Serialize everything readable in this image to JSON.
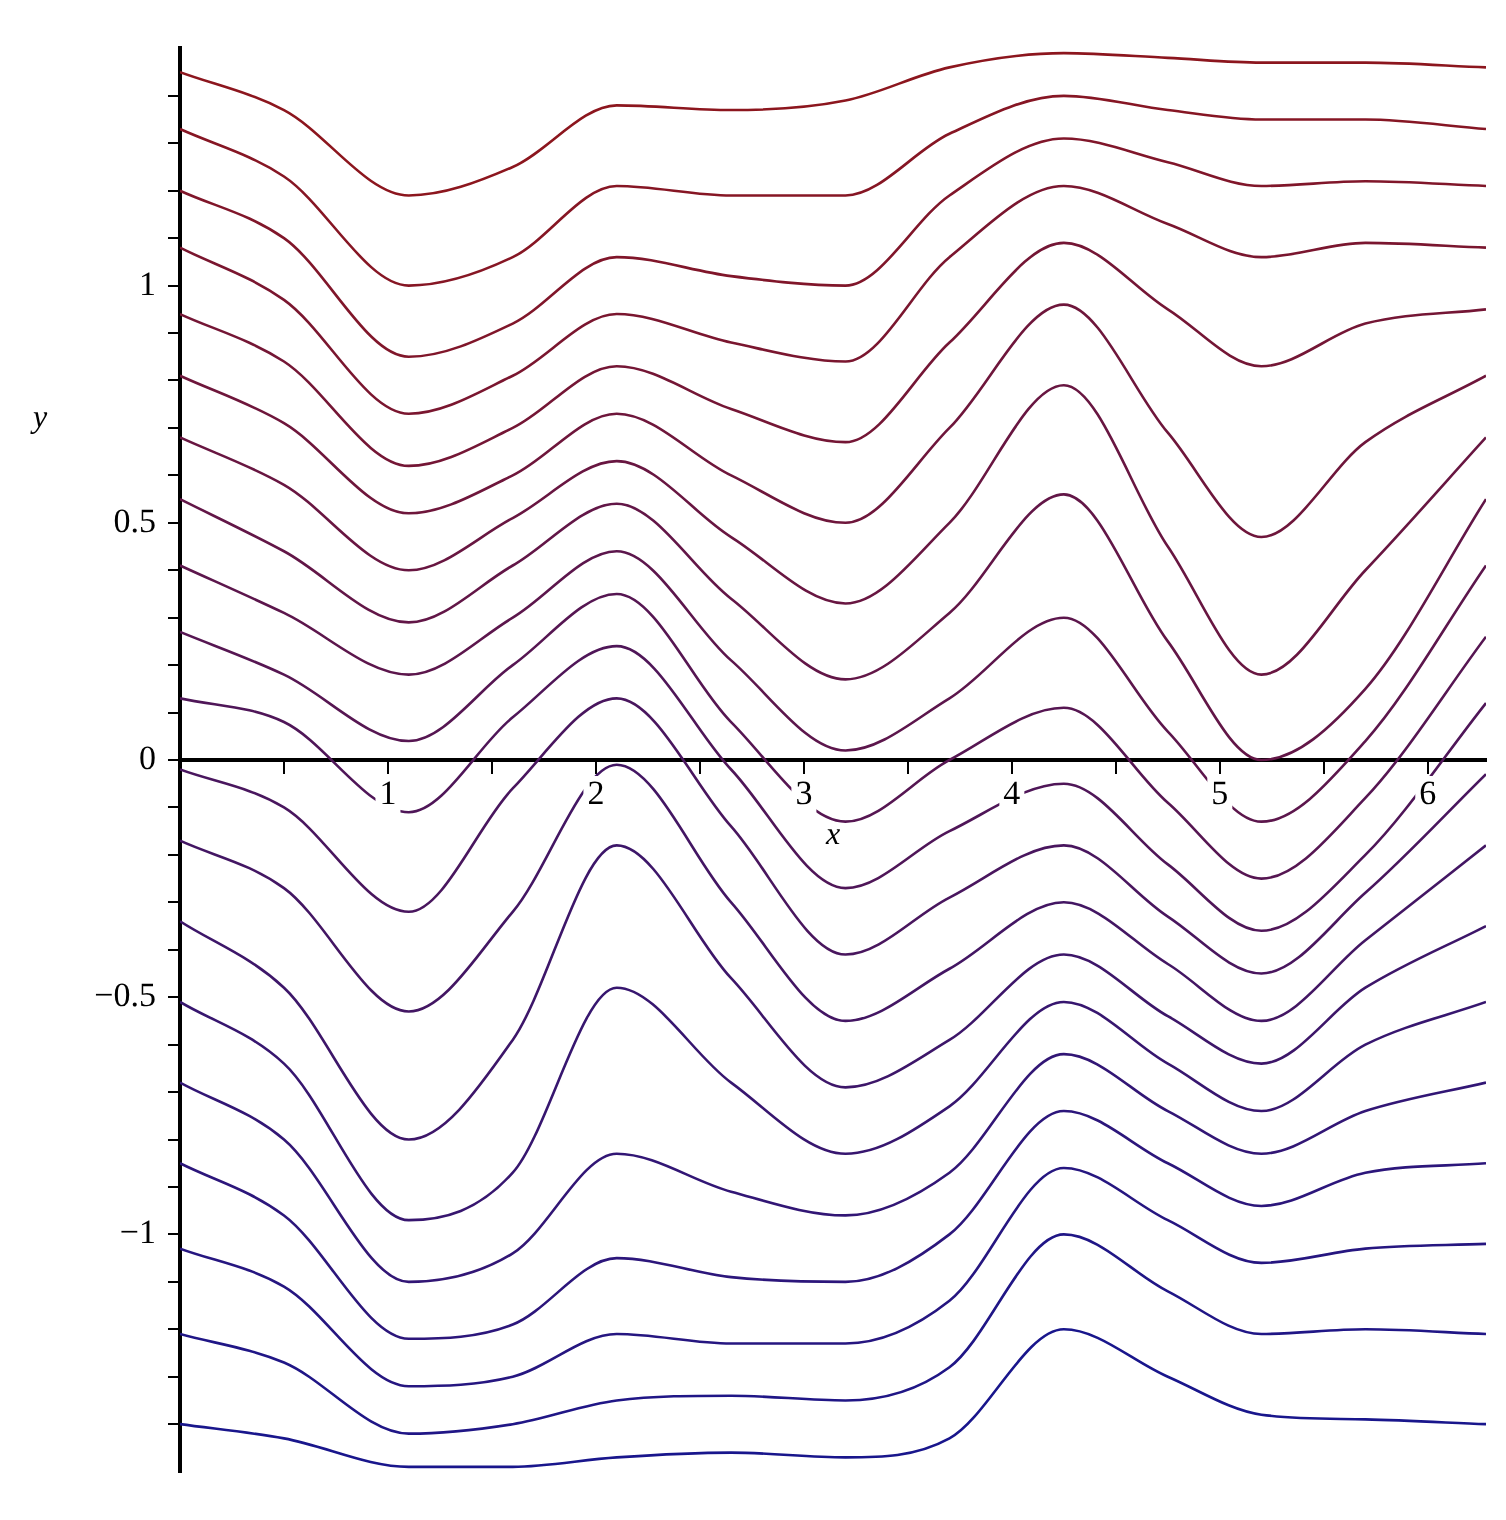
{
  "chart_data": {
    "type": "line",
    "xlabel": "x",
    "ylabel": "y",
    "x": [
      0,
      0.5,
      1.1,
      1.6,
      2.1,
      2.65,
      3.2,
      3.7,
      4.25,
      4.75,
      5.2,
      5.7,
      6.28
    ],
    "xlim": [
      0,
      6.28
    ],
    "ylim": [
      -1.5,
      1.5
    ],
    "xticks": [
      {
        "value": 0.5,
        "label": null
      },
      1,
      {
        "value": 1.5,
        "label": null
      },
      2,
      {
        "value": 2.5,
        "label": null
      },
      3,
      {
        "value": 3.5,
        "label": null
      },
      4,
      {
        "value": 4.5,
        "label": null
      },
      5,
      {
        "value": 5.5,
        "label": null
      },
      6
    ],
    "yticks": [
      {
        "value": -1.4,
        "label": null
      },
      {
        "value": -1.3,
        "label": null
      },
      {
        "value": -1.2,
        "label": null
      },
      {
        "value": -1.1,
        "label": null
      },
      {
        "value": -1,
        "label": "−1"
      },
      {
        "value": -0.9,
        "label": null
      },
      {
        "value": -0.8,
        "label": null
      },
      {
        "value": -0.7,
        "label": null
      },
      {
        "value": -0.6,
        "label": null
      },
      {
        "value": -0.5,
        "label": "−0.5"
      },
      {
        "value": -0.4,
        "label": null
      },
      {
        "value": -0.3,
        "label": null
      },
      {
        "value": -0.2,
        "label": null
      },
      {
        "value": -0.1,
        "label": null
      },
      0,
      {
        "value": 0.1,
        "label": null
      },
      {
        "value": 0.2,
        "label": null
      },
      {
        "value": 0.3,
        "label": null
      },
      {
        "value": 0.4,
        "label": null
      },
      0.5,
      {
        "value": 0.6,
        "label": null
      },
      {
        "value": 0.7,
        "label": null
      },
      {
        "value": 0.8,
        "label": null
      },
      {
        "value": 0.9,
        "label": null
      },
      1,
      {
        "value": 1.1,
        "label": null
      },
      {
        "value": 1.2,
        "label": null
      },
      {
        "value": 1.3,
        "label": null
      },
      {
        "value": 1.4,
        "label": null
      }
    ],
    "grid": false,
    "legend": false,
    "marker": "none",
    "line_style": "solid",
    "series": [
      {
        "color": "#8c161e",
        "values": [
          1.45,
          1.37,
          1.19,
          1.25,
          1.38,
          1.37,
          1.39,
          1.46,
          1.49,
          1.48,
          1.47,
          1.47,
          1.46
        ]
      },
      {
        "color": "#861624",
        "values": [
          1.33,
          1.23,
          1.0,
          1.06,
          1.21,
          1.19,
          1.19,
          1.32,
          1.4,
          1.37,
          1.35,
          1.35,
          1.33
        ]
      },
      {
        "color": "#80162a",
        "values": [
          1.2,
          1.1,
          0.85,
          0.92,
          1.06,
          1.02,
          1.0,
          1.19,
          1.31,
          1.26,
          1.21,
          1.22,
          1.21
        ]
      },
      {
        "color": "#7a162f",
        "values": [
          1.08,
          0.97,
          0.73,
          0.81,
          0.94,
          0.88,
          0.84,
          1.06,
          1.21,
          1.13,
          1.06,
          1.09,
          1.08
        ]
      },
      {
        "color": "#741635",
        "values": [
          0.94,
          0.84,
          0.62,
          0.7,
          0.83,
          0.74,
          0.67,
          0.88,
          1.09,
          0.95,
          0.83,
          0.92,
          0.95
        ]
      },
      {
        "color": "#6e163b",
        "values": [
          0.81,
          0.71,
          0.52,
          0.6,
          0.73,
          0.6,
          0.5,
          0.7,
          0.96,
          0.69,
          0.47,
          0.67,
          0.81
        ]
      },
      {
        "color": "#681641",
        "values": [
          0.68,
          0.58,
          0.4,
          0.51,
          0.63,
          0.47,
          0.33,
          0.5,
          0.79,
          0.45,
          0.18,
          0.4,
          0.68
        ]
      },
      {
        "color": "#621647",
        "values": [
          0.55,
          0.44,
          0.29,
          0.41,
          0.54,
          0.34,
          0.17,
          0.31,
          0.56,
          0.25,
          0.0,
          0.15,
          0.55
        ]
      },
      {
        "color": "#5c164c",
        "values": [
          0.41,
          0.31,
          0.18,
          0.3,
          0.44,
          0.21,
          0.02,
          0.13,
          0.3,
          0.06,
          -0.13,
          0.04,
          0.41
        ]
      },
      {
        "color": "#561652",
        "values": [
          0.27,
          0.18,
          0.04,
          0.2,
          0.35,
          0.08,
          -0.13,
          0.0,
          0.11,
          -0.09,
          -0.25,
          -0.08,
          0.26
        ]
      },
      {
        "color": "#4f1658",
        "values": [
          0.13,
          0.08,
          -0.11,
          0.09,
          0.24,
          -0.02,
          -0.27,
          -0.15,
          -0.05,
          -0.22,
          -0.36,
          -0.2,
          0.12
        ]
      },
      {
        "color": "#49165e",
        "values": [
          -0.02,
          -0.1,
          -0.32,
          -0.06,
          0.13,
          -0.14,
          -0.41,
          -0.29,
          -0.18,
          -0.33,
          -0.45,
          -0.28,
          -0.03
        ]
      },
      {
        "color": "#431663",
        "values": [
          -0.17,
          -0.27,
          -0.53,
          -0.32,
          -0.01,
          -0.3,
          -0.55,
          -0.44,
          -0.3,
          -0.43,
          -0.55,
          -0.38,
          -0.18
        ]
      },
      {
        "color": "#3d1669",
        "values": [
          -0.34,
          -0.48,
          -0.8,
          -0.59,
          -0.18,
          -0.46,
          -0.69,
          -0.59,
          -0.41,
          -0.54,
          -0.64,
          -0.48,
          -0.35
        ]
      },
      {
        "color": "#37166f",
        "values": [
          -0.51,
          -0.64,
          -0.97,
          -0.87,
          -0.48,
          -0.68,
          -0.83,
          -0.73,
          -0.51,
          -0.64,
          -0.74,
          -0.6,
          -0.51
        ]
      },
      {
        "color": "#321675",
        "values": [
          -0.68,
          -0.8,
          -1.1,
          -1.04,
          -0.83,
          -0.91,
          -0.96,
          -0.87,
          -0.62,
          -0.74,
          -0.83,
          -0.74,
          -0.68
        ]
      },
      {
        "color": "#2c167b",
        "values": [
          -0.85,
          -0.96,
          -1.22,
          -1.19,
          -1.05,
          -1.09,
          -1.1,
          -1.0,
          -0.74,
          -0.85,
          -0.94,
          -0.87,
          -0.85
        ]
      },
      {
        "color": "#261680",
        "values": [
          -1.03,
          -1.11,
          -1.32,
          -1.3,
          -1.21,
          -1.23,
          -1.23,
          -1.14,
          -0.86,
          -0.97,
          -1.06,
          -1.03,
          -1.02
        ]
      },
      {
        "color": "#201686",
        "values": [
          -1.21,
          -1.27,
          -1.42,
          -1.4,
          -1.35,
          -1.34,
          -1.35,
          -1.28,
          -1.0,
          -1.12,
          -1.21,
          -1.2,
          -1.21
        ]
      },
      {
        "color": "#19168c",
        "values": [
          -1.4,
          -1.43,
          -1.49,
          -1.49,
          -1.47,
          -1.46,
          -1.47,
          -1.43,
          -1.2,
          -1.3,
          -1.38,
          -1.39,
          -1.4
        ]
      }
    ]
  }
}
